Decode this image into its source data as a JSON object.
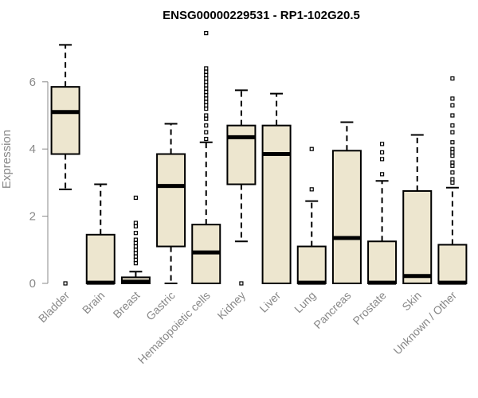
{
  "chart_data": {
    "type": "box",
    "title": "ENSG00000229531 - RP1-102G20.5",
    "xlabel": "",
    "ylabel": "Expression",
    "ylim": [
      0,
      7.5
    ],
    "yticks": [
      0,
      2,
      4,
      6
    ],
    "grid": false,
    "legend": "none",
    "colors": {
      "box_fill": "#ede6cf",
      "stroke": "#000000",
      "axis_text": "#888888"
    },
    "categories": [
      "Bladder",
      "Brain",
      "Breast",
      "Gastric",
      "Hematopoietic cells",
      "Kidney",
      "Liver",
      "Lung",
      "Pancreas",
      "Prostate",
      "Skin",
      "Unknown / Other"
    ],
    "boxes": [
      {
        "category": "Bladder",
        "whisker_low": 2.8,
        "q1": 3.85,
        "median": 5.1,
        "q3": 5.85,
        "whisker_high": 7.1,
        "outliers": [
          0.0
        ]
      },
      {
        "category": "Brain",
        "whisker_low": 0.0,
        "q1": 0.0,
        "median": 0.02,
        "q3": 1.45,
        "whisker_high": 2.95,
        "outliers": []
      },
      {
        "category": "Breast",
        "whisker_low": 0.0,
        "q1": 0.0,
        "median": 0.05,
        "q3": 0.18,
        "whisker_high": 0.35,
        "outliers": [
          0.6,
          0.7,
          0.8,
          0.9,
          1.0,
          1.1,
          1.2,
          1.3,
          1.5,
          1.7,
          1.8,
          2.55
        ]
      },
      {
        "category": "Gastric",
        "whisker_low": 0.0,
        "q1": 1.1,
        "median": 2.9,
        "q3": 3.85,
        "whisker_high": 4.75,
        "outliers": []
      },
      {
        "category": "Hematopoietic cells",
        "whisker_low": 0.0,
        "q1": 0.0,
        "median": 0.92,
        "q3": 1.75,
        "whisker_high": 4.2,
        "outliers": [
          4.3,
          4.5,
          4.7,
          4.9,
          5.0,
          5.2,
          5.3,
          5.4,
          5.5,
          5.6,
          5.7,
          5.8,
          5.9,
          6.0,
          6.1,
          6.2,
          6.3,
          6.4,
          7.45
        ]
      },
      {
        "category": "Kidney",
        "whisker_low": 1.25,
        "q1": 2.95,
        "median": 4.35,
        "q3": 4.7,
        "whisker_high": 5.75,
        "outliers": [
          0.0
        ]
      },
      {
        "category": "Liver",
        "whisker_low": 0.0,
        "q1": 0.0,
        "median": 3.85,
        "q3": 4.7,
        "whisker_high": 5.65,
        "outliers": []
      },
      {
        "category": "Lung",
        "whisker_low": 0.0,
        "q1": 0.0,
        "median": 0.02,
        "q3": 1.1,
        "whisker_high": 2.45,
        "outliers": [
          2.8,
          4.0
        ]
      },
      {
        "category": "Pancreas",
        "whisker_low": 0.0,
        "q1": 0.0,
        "median": 1.35,
        "q3": 3.95,
        "whisker_high": 4.8,
        "outliers": []
      },
      {
        "category": "Prostate",
        "whisker_low": 0.0,
        "q1": 0.0,
        "median": 0.02,
        "q3": 1.25,
        "whisker_high": 3.05,
        "outliers": [
          3.25,
          3.7,
          3.9,
          4.15
        ]
      },
      {
        "category": "Skin",
        "whisker_low": 0.0,
        "q1": 0.0,
        "median": 0.22,
        "q3": 2.75,
        "whisker_high": 4.42,
        "outliers": []
      },
      {
        "category": "Unknown / Other",
        "whisker_low": 0.0,
        "q1": 0.0,
        "median": 0.02,
        "q3": 1.15,
        "whisker_high": 2.85,
        "outliers": [
          3.0,
          3.1,
          3.3,
          3.5,
          3.6,
          3.8,
          3.9,
          4.0,
          4.2,
          4.5,
          4.7,
          5.0,
          5.3,
          5.5,
          6.1
        ]
      }
    ]
  }
}
